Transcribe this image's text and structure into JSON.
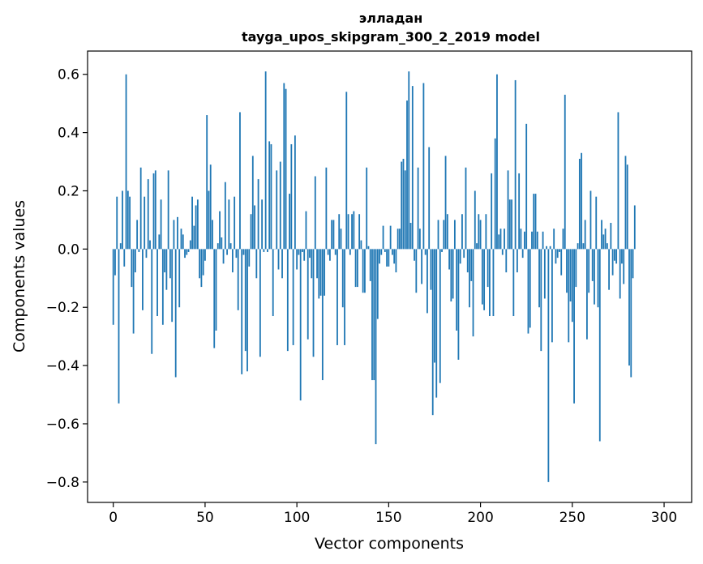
{
  "chart_data": {
    "type": "bar",
    "title": "элладан",
    "subtitle": "tayga_upos_skipgram_300_2_2019 model",
    "xlabel": "Vector components",
    "ylabel": "Components values",
    "xlim": [
      -14,
      315
    ],
    "ylim": [
      -0.87,
      0.68
    ],
    "xticks": [
      0,
      50,
      100,
      150,
      200,
      250,
      300
    ],
    "xtick_labels": [
      "0",
      "50",
      "100",
      "150",
      "200",
      "250",
      "300"
    ],
    "yticks": [
      0.6,
      0.4,
      0.2,
      0.0,
      -0.2,
      -0.4,
      -0.6,
      -0.8
    ],
    "ytick_labels": [
      "0.6",
      "0.4",
      "0.2",
      "0.0",
      "−0.2",
      "−0.4",
      "−0.6",
      "−0.8"
    ],
    "grid": false,
    "legend": "none",
    "bar_color": "#1f77b4",
    "values": [
      -0.26,
      -0.09,
      0.18,
      -0.53,
      0.02,
      0.2,
      -0.06,
      0.6,
      0.2,
      0.18,
      -0.13,
      -0.29,
      -0.08,
      0.1,
      -0.01,
      0.28,
      -0.21,
      0.18,
      -0.03,
      0.24,
      0.03,
      -0.36,
      0.26,
      0.27,
      -0.23,
      0.05,
      0.17,
      -0.26,
      -0.08,
      -0.14,
      0.27,
      -0.1,
      -0.25,
      0.1,
      -0.44,
      0.11,
      -0.2,
      0.07,
      0.05,
      -0.03,
      -0.02,
      -0.01,
      0.03,
      0.18,
      0.08,
      0.15,
      0.17,
      -0.1,
      -0.13,
      -0.09,
      -0.04,
      0.46,
      0.2,
      0.29,
      0.1,
      -0.34,
      -0.28,
      0.02,
      0.13,
      0.04,
      -0.05,
      0.23,
      -0.02,
      0.17,
      0.02,
      -0.08,
      0.18,
      -0.03,
      -0.21,
      0.47,
      -0.43,
      -0.02,
      -0.35,
      -0.42,
      -0.06,
      0.12,
      0.32,
      0.15,
      -0.1,
      0.24,
      -0.37,
      0.17,
      -0.01,
      0.61,
      -0.01,
      0.37,
      0.36,
      -0.23,
      0.0,
      0.27,
      -0.07,
      0.3,
      -0.1,
      0.57,
      0.55,
      -0.35,
      0.19,
      0.36,
      -0.33,
      0.39,
      -0.07,
      -0.02,
      -0.52,
      -0.01,
      -0.04,
      0.13,
      -0.31,
      -0.03,
      -0.1,
      -0.37,
      0.25,
      -0.1,
      -0.17,
      -0.16,
      -0.45,
      -0.16,
      0.28,
      -0.02,
      -0.04,
      0.1,
      0.1,
      -0.02,
      -0.33,
      0.12,
      0.07,
      -0.2,
      -0.33,
      0.54,
      0.12,
      -0.02,
      0.12,
      0.13,
      -0.13,
      -0.13,
      0.12,
      0.03,
      -0.15,
      -0.15,
      0.28,
      0.01,
      -0.11,
      -0.45,
      -0.45,
      -0.67,
      -0.24,
      -0.05,
      -0.02,
      0.08,
      -0.01,
      -0.06,
      -0.06,
      0.08,
      -0.02,
      -0.05,
      -0.08,
      0.07,
      0.07,
      0.3,
      0.31,
      0.27,
      0.51,
      0.61,
      0.09,
      0.56,
      -0.04,
      -0.15,
      0.28,
      0.07,
      -0.12,
      0.57,
      -0.02,
      -0.22,
      0.35,
      -0.14,
      -0.57,
      -0.39,
      -0.51,
      0.1,
      -0.46,
      -0.01,
      0.1,
      0.32,
      0.12,
      -0.07,
      -0.18,
      -0.17,
      0.1,
      -0.28,
      -0.38,
      -0.05,
      0.12,
      -0.03,
      0.28,
      -0.08,
      -0.2,
      -0.11,
      -0.3,
      0.2,
      0.02,
      0.12,
      0.1,
      -0.19,
      -0.21,
      0.12,
      -0.13,
      -0.23,
      0.26,
      -0.23,
      0.38,
      0.6,
      0.05,
      0.07,
      -0.02,
      0.07,
      -0.08,
      0.27,
      0.17,
      0.17,
      -0.23,
      0.58,
      -0.08,
      0.26,
      0.07,
      -0.03,
      0.06,
      0.43,
      -0.29,
      -0.27,
      0.06,
      0.19,
      0.19,
      0.06,
      -0.2,
      -0.35,
      0.06,
      -0.17,
      0.01,
      -0.8,
      0.01,
      -0.32,
      0.07,
      -0.05,
      -0.03,
      -0.01,
      -0.09,
      0.07,
      0.53,
      -0.15,
      -0.32,
      -0.18,
      -0.25,
      -0.53,
      -0.13,
      0.02,
      0.31,
      0.33,
      0.02,
      0.1,
      -0.31,
      -0.15,
      0.2,
      -0.11,
      -0.19,
      0.18,
      -0.2,
      -0.66,
      0.1,
      0.05,
      0.07,
      0.02,
      -0.14,
      0.09,
      -0.09,
      -0.04,
      -0.05,
      0.47,
      -0.17,
      -0.05,
      -0.12,
      0.32,
      0.29,
      -0.4,
      -0.44,
      -0.1,
      0.15
    ]
  }
}
